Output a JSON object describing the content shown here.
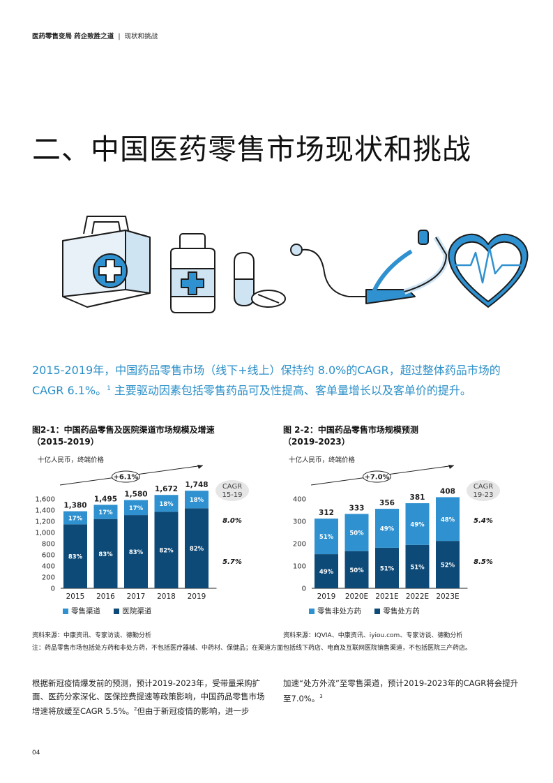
{
  "header": {
    "publication": "医药零售变局  药企致胜之道",
    "separator": "|",
    "section": "现状和挑战"
  },
  "title": "二、中国医药零售市场现状和挑战",
  "intro": {
    "text": "2015-2019年，中国药品零售市场（线下+线上）保持约 8.0%的CAGR，超过整体药品市场的CAGR 6.1%。",
    "footnote": "1",
    "text2": "主要驱动因素包括零售药品可及性提高、客单量增长以及客单价的提升。"
  },
  "colors": {
    "accent": "#2a8fc8",
    "dark": "#0e4a77",
    "light": "#2f91cf"
  },
  "fig1": {
    "title_line1": "图2-1：中国药品零售及医院渠道市场规模及增速",
    "title_line2": "（2015-2019）",
    "unit": "十亿人民币，终端价格",
    "growth": "+6.1%",
    "cagr_label_1": "CAGR",
    "cagr_label_2": "15-19",
    "cagr_top": "8.0%",
    "cagr_bottom": "5.7%",
    "legend_light": "零售渠道",
    "legend_dark": "医院渠道",
    "source": "资料来源：中康资讯、专家访谈、德勤分析"
  },
  "fig2": {
    "title_line1": "图 2-2：中国药品零售市场规模预测",
    "title_line2": "（2019-2023）",
    "unit": "十亿人民币，终端价格",
    "growth": "+7.0%",
    "cagr_label_1": "CAGR",
    "cagr_label_2": "19-23",
    "cagr_top": "5.4%",
    "cagr_bottom": "8.5%",
    "legend_light": "零售非处方药",
    "legend_dark": "零售处方药",
    "source": "资料来源：IQVIA、中康资讯、iyiou.com、专家访谈、德勤分析"
  },
  "note": "注：药品零售市场包括处方药和非处方药，不包括医疗器械、中药材、保健品；在渠道方面包括线下药店、电商及互联网医院销售渠道，不包括医院三产药店。",
  "para1": {
    "text": "根据新冠疫情爆发前的预测，预计2019-2023年，受带量采购扩面、医药分家深化、医保控费提速等政策影响，中国药品零售市场增速将放缓至CAGR 5.5%。",
    "footnote": "2",
    "text2": "但由于新冠疫情的影响，进一步"
  },
  "para2": {
    "text": "加速“处方外流”至零售渠道，预计2019-2023年的CAGR将会提升至7.0%。",
    "footnote": "3"
  },
  "page_number": "04",
  "chart_data": [
    {
      "type": "bar",
      "stacked": true,
      "categories": [
        "2015",
        "2016",
        "2017",
        "2018",
        "2019"
      ],
      "totals": [
        1380,
        1495,
        1580,
        1672,
        1748
      ],
      "totals_labels": [
        "1,380",
        "1,495",
        "1,580",
        "1,672",
        "1,748"
      ],
      "series": [
        {
          "name": "零售渠道",
          "color": "#2f91cf",
          "share_labels": [
            "17%",
            "17%",
            "17%",
            "18%",
            "18%"
          ],
          "share": [
            0.17,
            0.17,
            0.17,
            0.18,
            0.18
          ]
        },
        {
          "name": "医院渠道",
          "color": "#0e4a77",
          "share_labels": [
            "83%",
            "83%",
            "83%",
            "82%",
            "82%"
          ],
          "share": [
            0.83,
            0.83,
            0.83,
            0.82,
            0.82
          ]
        }
      ],
      "ylim": [
        0,
        1600
      ],
      "yticks": [
        0,
        200,
        400,
        600,
        800,
        1000,
        1200,
        1400,
        1600
      ],
      "ytick_labels": [
        "0",
        "200",
        "400",
        "600",
        "800",
        "1,000",
        "1,200",
        "1,400",
        "1,600"
      ]
    },
    {
      "type": "bar",
      "stacked": true,
      "categories": [
        "2019",
        "2020E",
        "2021E",
        "2022E",
        "2023E"
      ],
      "totals": [
        312,
        333,
        356,
        381,
        408
      ],
      "totals_labels": [
        "312",
        "333",
        "356",
        "381",
        "408"
      ],
      "series": [
        {
          "name": "零售非处方药",
          "color": "#2f91cf",
          "share_labels": [
            "51%",
            "50%",
            "49%",
            "49%",
            "48%"
          ],
          "share": [
            0.51,
            0.5,
            0.49,
            0.49,
            0.48
          ]
        },
        {
          "name": "零售处方药",
          "color": "#0e4a77",
          "share_labels": [
            "49%",
            "50%",
            "51%",
            "51%",
            "52%"
          ],
          "share": [
            0.49,
            0.5,
            0.51,
            0.51,
            0.52
          ]
        }
      ],
      "ylim": [
        0,
        400
      ],
      "yticks": [
        0,
        100,
        200,
        300,
        400
      ],
      "ytick_labels": [
        "0",
        "100",
        "200",
        "300",
        "400"
      ]
    }
  ]
}
